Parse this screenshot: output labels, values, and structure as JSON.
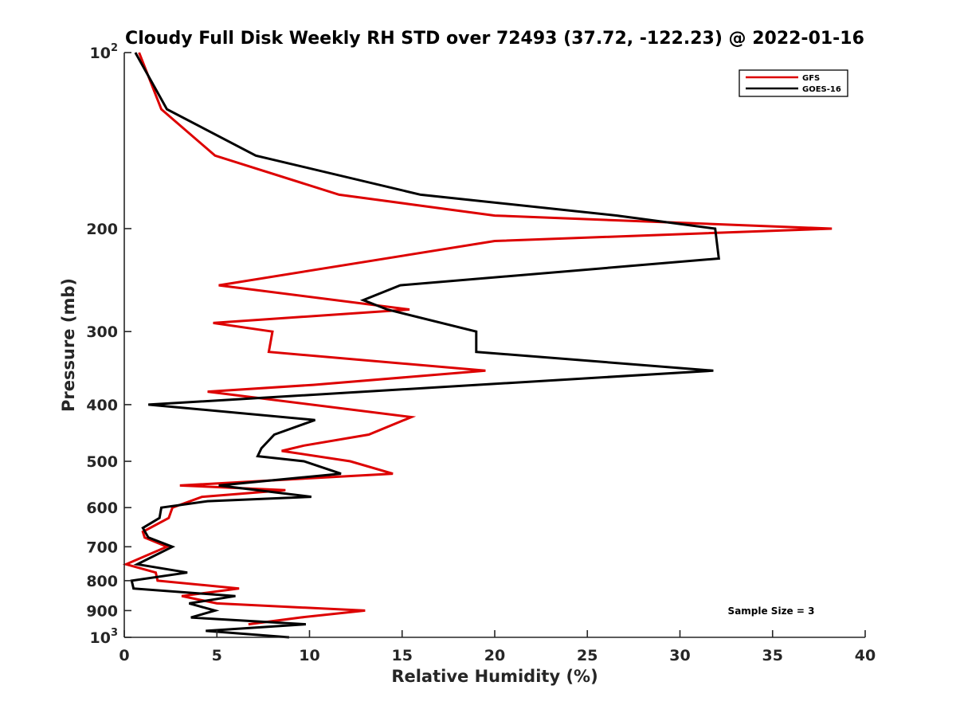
{
  "chart_data": {
    "type": "line",
    "title": "Cloudy Full Disk Weekly RH STD over 72493 (37.72, -122.23) @ 2022-01-16",
    "xlabel": "Relative Humidity (%)",
    "ylabel": "Pressure (mb)",
    "xlim": [
      0,
      40
    ],
    "ylim": [
      100,
      1000
    ],
    "yscale": "log",
    "y_reversed": true,
    "grid": false,
    "legend_position": "top-right",
    "x_ticks": [
      0,
      5,
      10,
      15,
      20,
      25,
      30,
      35,
      40
    ],
    "y_ticks": [
      {
        "value": 100,
        "base": "10",
        "exp": "2"
      },
      {
        "value": 200,
        "label": "200"
      },
      {
        "value": 300,
        "label": "300"
      },
      {
        "value": 400,
        "label": "400"
      },
      {
        "value": 500,
        "label": "500"
      },
      {
        "value": 600,
        "label": "600"
      },
      {
        "value": 700,
        "label": "700"
      },
      {
        "value": 800,
        "label": "800"
      },
      {
        "value": 900,
        "label": "900"
      },
      {
        "value": 1000,
        "base": "10",
        "exp": "3"
      }
    ],
    "annotation": "Sample Size = 3",
    "series": [
      {
        "name": "GFS",
        "color": "#dd0000",
        "points": [
          [
            0.8,
            100
          ],
          [
            2.0,
            125
          ],
          [
            4.9,
            150
          ],
          [
            11.6,
            175
          ],
          [
            20.0,
            190
          ],
          [
            38.2,
            200
          ],
          [
            20.0,
            210
          ],
          [
            5.1,
            250
          ],
          [
            15.4,
            275
          ],
          [
            4.8,
            290
          ],
          [
            8.0,
            300
          ],
          [
            7.8,
            325
          ],
          [
            19.5,
            350
          ],
          [
            10.2,
            370
          ],
          [
            4.5,
            380
          ],
          [
            15.5,
            420
          ],
          [
            13.2,
            450
          ],
          [
            9.7,
            470
          ],
          [
            8.5,
            480
          ],
          [
            12.2,
            500
          ],
          [
            14.5,
            525
          ],
          [
            3.0,
            550
          ],
          [
            8.7,
            560
          ],
          [
            4.2,
            575
          ],
          [
            2.6,
            600
          ],
          [
            2.4,
            625
          ],
          [
            1.0,
            660
          ],
          [
            1.1,
            675
          ],
          [
            2.3,
            700
          ],
          [
            0.1,
            750
          ],
          [
            1.7,
            775
          ],
          [
            1.8,
            800
          ],
          [
            6.2,
            825
          ],
          [
            3.1,
            850
          ],
          [
            5.0,
            875
          ],
          [
            13.0,
            900
          ],
          [
            9.5,
            925
          ],
          [
            6.7,
            950
          ]
        ]
      },
      {
        "name": "GOES-16",
        "color": "#000000",
        "points": [
          [
            0.6,
            100
          ],
          [
            2.3,
            125
          ],
          [
            7.1,
            150
          ],
          [
            16.0,
            175
          ],
          [
            26.6,
            190
          ],
          [
            31.9,
            200
          ],
          [
            32.1,
            225
          ],
          [
            14.9,
            250
          ],
          [
            12.9,
            265
          ],
          [
            14.2,
            275
          ],
          [
            19.0,
            300
          ],
          [
            19.0,
            325
          ],
          [
            31.8,
            350
          ],
          [
            1.3,
            400
          ],
          [
            10.3,
            425
          ],
          [
            8.1,
            450
          ],
          [
            7.4,
            475
          ],
          [
            7.2,
            490
          ],
          [
            9.7,
            500
          ],
          [
            11.7,
            525
          ],
          [
            5.1,
            550
          ],
          [
            10.1,
            575
          ],
          [
            4.5,
            585
          ],
          [
            2.0,
            600
          ],
          [
            1.9,
            625
          ],
          [
            1.0,
            650
          ],
          [
            1.3,
            675
          ],
          [
            2.6,
            700
          ],
          [
            0.7,
            750
          ],
          [
            3.4,
            775
          ],
          [
            0.4,
            800
          ],
          [
            0.5,
            825
          ],
          [
            6.0,
            850
          ],
          [
            3.5,
            875
          ],
          [
            4.9,
            900
          ],
          [
            3.6,
            925
          ],
          [
            9.8,
            950
          ],
          [
            4.4,
            975
          ],
          [
            8.9,
            1000
          ]
        ]
      }
    ]
  }
}
